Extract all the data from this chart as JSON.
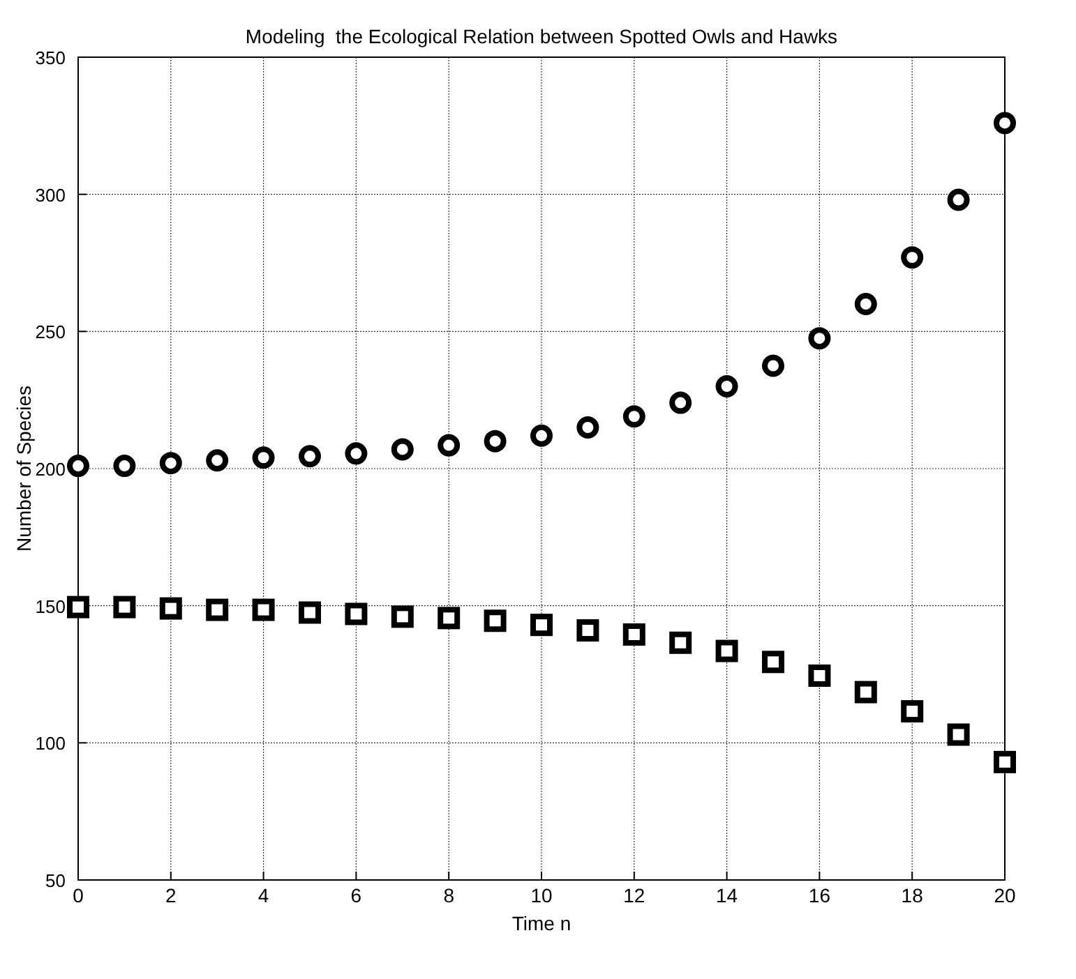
{
  "chart_data": {
    "type": "scatter",
    "title": "Modeling  the Ecological Relation between Spotted Owls and Hawks",
    "xlabel": "Time n",
    "ylabel": "Number of Species",
    "x": [
      0,
      1,
      2,
      3,
      4,
      5,
      6,
      7,
      8,
      9,
      10,
      11,
      12,
      13,
      14,
      15,
      16,
      17,
      18,
      19,
      20
    ],
    "series": [
      {
        "color": "#000000",
        "marker": "circle",
        "values": [
          201,
          201,
          202,
          203,
          204,
          204.5,
          205.5,
          207,
          208.5,
          210,
          212,
          215,
          219,
          224,
          230,
          237.5,
          247.5,
          260,
          277,
          298,
          326
        ]
      },
      {
        "color": "#000000",
        "marker": "square",
        "values": [
          149.5,
          149.5,
          149,
          148.5,
          148.5,
          147.5,
          147,
          146,
          145.5,
          144.5,
          143,
          141,
          139.5,
          136.5,
          133.5,
          129.5,
          124.5,
          118.5,
          111.5,
          103,
          93
        ]
      }
    ],
    "xlim": [
      0,
      20
    ],
    "ylim": [
      50,
      350
    ],
    "xticks": [
      0,
      2,
      4,
      6,
      8,
      10,
      12,
      14,
      16,
      18,
      20
    ],
    "yticks": [
      50,
      100,
      150,
      200,
      250,
      300,
      350
    ],
    "grid": true
  }
}
